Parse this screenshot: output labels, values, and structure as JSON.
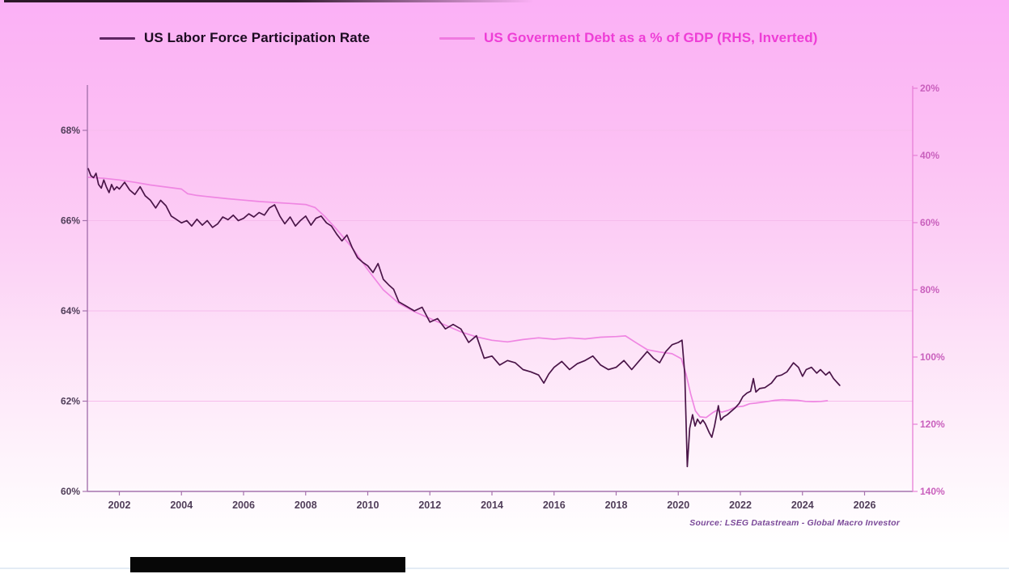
{
  "legend": {
    "series1_label": "US Labor Force Participation Rate",
    "series2_label": "US Goverment Debt as a % of GDP (RHS, Inverted)"
  },
  "source_note": "Source: LSEG Datastream - Global Macro Investor",
  "colors": {
    "background_top": "#fbb0f6",
    "background_bottom": "#ffffff",
    "left_axis_line": "#a673ae",
    "right_axis_line": "#e77fd7",
    "left_tick_label": "#503e59",
    "right_tick_label": "#c960bd",
    "gridline": "#f6bcec",
    "series_dark": "#4a1548",
    "series_pink": "#ef86e2",
    "legend_dark_text": "#1c0c21",
    "legend_pink_text": "#ee3ed6"
  },
  "chart_data": {
    "type": "line",
    "title": "",
    "x_axis": {
      "range": [
        2001,
        2027.6
      ],
      "ticks": [
        {
          "v": 2002,
          "label": "2002"
        },
        {
          "v": 2004,
          "label": "2004"
        },
        {
          "v": 2006,
          "label": "2006"
        },
        {
          "v": 2008,
          "label": "2008"
        },
        {
          "v": 2010,
          "label": "2010"
        },
        {
          "v": 2012,
          "label": "2012"
        },
        {
          "v": 2014,
          "label": "2014"
        },
        {
          "v": 2016,
          "label": "2016"
        },
        {
          "v": 2018,
          "label": "2018"
        },
        {
          "v": 2020,
          "label": "2020"
        },
        {
          "v": 2022,
          "label": "2022"
        },
        {
          "v": 2024,
          "label": "2024"
        },
        {
          "v": 2026,
          "label": "2026"
        }
      ]
    },
    "left_axis": {
      "title": "US Labor Force Participation Rate",
      "range": [
        60,
        69
      ],
      "ticks": [
        {
          "v": 68,
          "label": "68%"
        },
        {
          "v": 66,
          "label": "66%"
        },
        {
          "v": 64,
          "label": "64%"
        },
        {
          "v": 62,
          "label": "62%"
        },
        {
          "v": 60,
          "label": "60%"
        }
      ]
    },
    "right_axis": {
      "title": "US Goverment Debt as a % of GDP",
      "inverted": true,
      "range": [
        20,
        140
      ],
      "ticks": [
        {
          "v": 20,
          "label": "20%"
        },
        {
          "v": 40,
          "label": "40%"
        },
        {
          "v": 60,
          "label": "60%"
        },
        {
          "v": 80,
          "label": "80%"
        },
        {
          "v": 100,
          "label": "100%"
        },
        {
          "v": 120,
          "label": "120%"
        },
        {
          "v": 140,
          "label": "140%"
        }
      ]
    },
    "gridlines": {
      "left_values": [
        68,
        66,
        64,
        62
      ]
    },
    "series": [
      {
        "name": "US Labor Force Participation Rate",
        "axis": "left",
        "color": "#4a1548",
        "width": 1.7,
        "points": [
          [
            2001.0,
            67.15
          ],
          [
            2001.08,
            67.0
          ],
          [
            2001.17,
            66.95
          ],
          [
            2001.25,
            67.05
          ],
          [
            2001.33,
            66.8
          ],
          [
            2001.42,
            66.72
          ],
          [
            2001.5,
            66.9
          ],
          [
            2001.58,
            66.75
          ],
          [
            2001.67,
            66.62
          ],
          [
            2001.75,
            66.8
          ],
          [
            2001.83,
            66.68
          ],
          [
            2001.92,
            66.75
          ],
          [
            2002.0,
            66.7
          ],
          [
            2002.17,
            66.85
          ],
          [
            2002.33,
            66.68
          ],
          [
            2002.5,
            66.58
          ],
          [
            2002.67,
            66.75
          ],
          [
            2002.83,
            66.55
          ],
          [
            2003.0,
            66.45
          ],
          [
            2003.17,
            66.28
          ],
          [
            2003.33,
            66.45
          ],
          [
            2003.5,
            66.33
          ],
          [
            2003.67,
            66.1
          ],
          [
            2003.83,
            66.03
          ],
          [
            2004.0,
            65.95
          ],
          [
            2004.17,
            66.0
          ],
          [
            2004.33,
            65.88
          ],
          [
            2004.5,
            66.03
          ],
          [
            2004.67,
            65.9
          ],
          [
            2004.83,
            66.0
          ],
          [
            2005.0,
            65.85
          ],
          [
            2005.17,
            65.93
          ],
          [
            2005.33,
            66.08
          ],
          [
            2005.5,
            66.02
          ],
          [
            2005.67,
            66.12
          ],
          [
            2005.83,
            66.0
          ],
          [
            2006.0,
            66.05
          ],
          [
            2006.17,
            66.15
          ],
          [
            2006.33,
            66.08
          ],
          [
            2006.5,
            66.18
          ],
          [
            2006.67,
            66.12
          ],
          [
            2006.83,
            66.28
          ],
          [
            2007.0,
            66.35
          ],
          [
            2007.17,
            66.1
          ],
          [
            2007.33,
            65.93
          ],
          [
            2007.5,
            66.08
          ],
          [
            2007.67,
            65.88
          ],
          [
            2007.83,
            66.0
          ],
          [
            2008.0,
            66.1
          ],
          [
            2008.17,
            65.9
          ],
          [
            2008.33,
            66.05
          ],
          [
            2008.5,
            66.1
          ],
          [
            2008.67,
            65.95
          ],
          [
            2008.83,
            65.88
          ],
          [
            2009.0,
            65.7
          ],
          [
            2009.17,
            65.55
          ],
          [
            2009.33,
            65.68
          ],
          [
            2009.5,
            65.4
          ],
          [
            2009.67,
            65.18
          ],
          [
            2009.83,
            65.08
          ],
          [
            2010.0,
            65.0
          ],
          [
            2010.17,
            64.85
          ],
          [
            2010.33,
            65.05
          ],
          [
            2010.5,
            64.7
          ],
          [
            2010.67,
            64.58
          ],
          [
            2010.83,
            64.48
          ],
          [
            2011.0,
            64.2
          ],
          [
            2011.25,
            64.1
          ],
          [
            2011.5,
            64.0
          ],
          [
            2011.75,
            64.08
          ],
          [
            2012.0,
            63.75
          ],
          [
            2012.25,
            63.83
          ],
          [
            2012.5,
            63.6
          ],
          [
            2012.75,
            63.7
          ],
          [
            2013.0,
            63.6
          ],
          [
            2013.25,
            63.3
          ],
          [
            2013.5,
            63.45
          ],
          [
            2013.75,
            62.95
          ],
          [
            2014.0,
            63.0
          ],
          [
            2014.25,
            62.8
          ],
          [
            2014.5,
            62.9
          ],
          [
            2014.75,
            62.85
          ],
          [
            2015.0,
            62.7
          ],
          [
            2015.25,
            62.65
          ],
          [
            2015.5,
            62.58
          ],
          [
            2015.67,
            62.4
          ],
          [
            2015.83,
            62.6
          ],
          [
            2016.0,
            62.75
          ],
          [
            2016.25,
            62.88
          ],
          [
            2016.5,
            62.7
          ],
          [
            2016.75,
            62.83
          ],
          [
            2017.0,
            62.9
          ],
          [
            2017.25,
            63.0
          ],
          [
            2017.5,
            62.8
          ],
          [
            2017.75,
            62.7
          ],
          [
            2018.0,
            62.75
          ],
          [
            2018.25,
            62.9
          ],
          [
            2018.5,
            62.7
          ],
          [
            2018.75,
            62.9
          ],
          [
            2019.0,
            63.1
          ],
          [
            2019.2,
            62.95
          ],
          [
            2019.4,
            62.85
          ],
          [
            2019.6,
            63.1
          ],
          [
            2019.8,
            63.25
          ],
          [
            2020.0,
            63.3
          ],
          [
            2020.12,
            63.35
          ],
          [
            2020.21,
            62.6
          ],
          [
            2020.29,
            60.55
          ],
          [
            2020.37,
            61.4
          ],
          [
            2020.46,
            61.7
          ],
          [
            2020.54,
            61.45
          ],
          [
            2020.62,
            61.6
          ],
          [
            2020.71,
            61.5
          ],
          [
            2020.79,
            61.58
          ],
          [
            2020.87,
            61.5
          ],
          [
            2021.0,
            61.3
          ],
          [
            2021.08,
            61.2
          ],
          [
            2021.17,
            61.45
          ],
          [
            2021.29,
            61.9
          ],
          [
            2021.37,
            61.58
          ],
          [
            2021.46,
            61.65
          ],
          [
            2021.58,
            61.7
          ],
          [
            2021.71,
            61.78
          ],
          [
            2021.83,
            61.85
          ],
          [
            2021.96,
            61.95
          ],
          [
            2022.08,
            62.1
          ],
          [
            2022.21,
            62.18
          ],
          [
            2022.33,
            62.22
          ],
          [
            2022.42,
            62.5
          ],
          [
            2022.5,
            62.2
          ],
          [
            2022.62,
            62.28
          ],
          [
            2022.79,
            62.3
          ],
          [
            2023.0,
            62.4
          ],
          [
            2023.17,
            62.55
          ],
          [
            2023.33,
            62.58
          ],
          [
            2023.5,
            62.65
          ],
          [
            2023.71,
            62.85
          ],
          [
            2023.87,
            62.75
          ],
          [
            2024.0,
            62.55
          ],
          [
            2024.12,
            62.7
          ],
          [
            2024.29,
            62.75
          ],
          [
            2024.46,
            62.62
          ],
          [
            2024.58,
            62.7
          ],
          [
            2024.75,
            62.58
          ],
          [
            2024.87,
            62.65
          ],
          [
            2025.0,
            62.5
          ],
          [
            2025.2,
            62.35
          ]
        ]
      },
      {
        "name": "US Goverment Debt as a % of GDP (RHS, Inverted)",
        "axis": "right",
        "color": "#ef86e2",
        "width": 1.7,
        "points": [
          [
            2001.0,
            46.5
          ],
          [
            2001.5,
            46.8
          ],
          [
            2002.0,
            47.3
          ],
          [
            2002.5,
            48.0
          ],
          [
            2003.0,
            48.8
          ],
          [
            2003.5,
            49.4
          ],
          [
            2004.0,
            50.0
          ],
          [
            2004.2,
            51.4
          ],
          [
            2004.5,
            51.9
          ],
          [
            2005.0,
            52.4
          ],
          [
            2005.5,
            52.9
          ],
          [
            2006.0,
            53.3
          ],
          [
            2006.5,
            53.7
          ],
          [
            2007.0,
            54.0
          ],
          [
            2007.5,
            54.3
          ],
          [
            2008.0,
            54.6
          ],
          [
            2008.3,
            55.5
          ],
          [
            2008.6,
            58.0
          ],
          [
            2009.0,
            62.0
          ],
          [
            2009.5,
            67.5
          ],
          [
            2010.0,
            74.0
          ],
          [
            2010.5,
            80.0
          ],
          [
            2011.0,
            84.0
          ],
          [
            2011.5,
            86.5
          ],
          [
            2012.0,
            88.5
          ],
          [
            2012.5,
            90.5
          ],
          [
            2013.0,
            92.5
          ],
          [
            2013.5,
            94.0
          ],
          [
            2014.0,
            95.0
          ],
          [
            2014.5,
            95.5
          ],
          [
            2015.0,
            94.8
          ],
          [
            2015.5,
            94.3
          ],
          [
            2016.0,
            94.7
          ],
          [
            2016.5,
            94.3
          ],
          [
            2017.0,
            94.6
          ],
          [
            2017.5,
            94.1
          ],
          [
            2018.0,
            93.9
          ],
          [
            2018.3,
            93.7
          ],
          [
            2018.6,
            95.5
          ],
          [
            2019.0,
            97.8
          ],
          [
            2019.4,
            98.5
          ],
          [
            2019.8,
            99.0
          ],
          [
            2020.1,
            100.5
          ],
          [
            2020.25,
            105.0
          ],
          [
            2020.4,
            111.0
          ],
          [
            2020.55,
            116.0
          ],
          [
            2020.7,
            117.8
          ],
          [
            2020.9,
            118.0
          ],
          [
            2021.1,
            116.6
          ],
          [
            2021.25,
            115.8
          ],
          [
            2021.4,
            116.4
          ],
          [
            2021.6,
            115.9
          ],
          [
            2021.85,
            114.9
          ],
          [
            2022.1,
            114.6
          ],
          [
            2022.3,
            113.9
          ],
          [
            2022.5,
            113.7
          ],
          [
            2022.9,
            113.2
          ],
          [
            2023.1,
            112.9
          ],
          [
            2023.35,
            112.7
          ],
          [
            2023.6,
            112.8
          ],
          [
            2023.85,
            112.9
          ],
          [
            2024.1,
            113.2
          ],
          [
            2024.35,
            113.3
          ],
          [
            2024.6,
            113.2
          ],
          [
            2024.8,
            113.0
          ]
        ]
      }
    ]
  }
}
